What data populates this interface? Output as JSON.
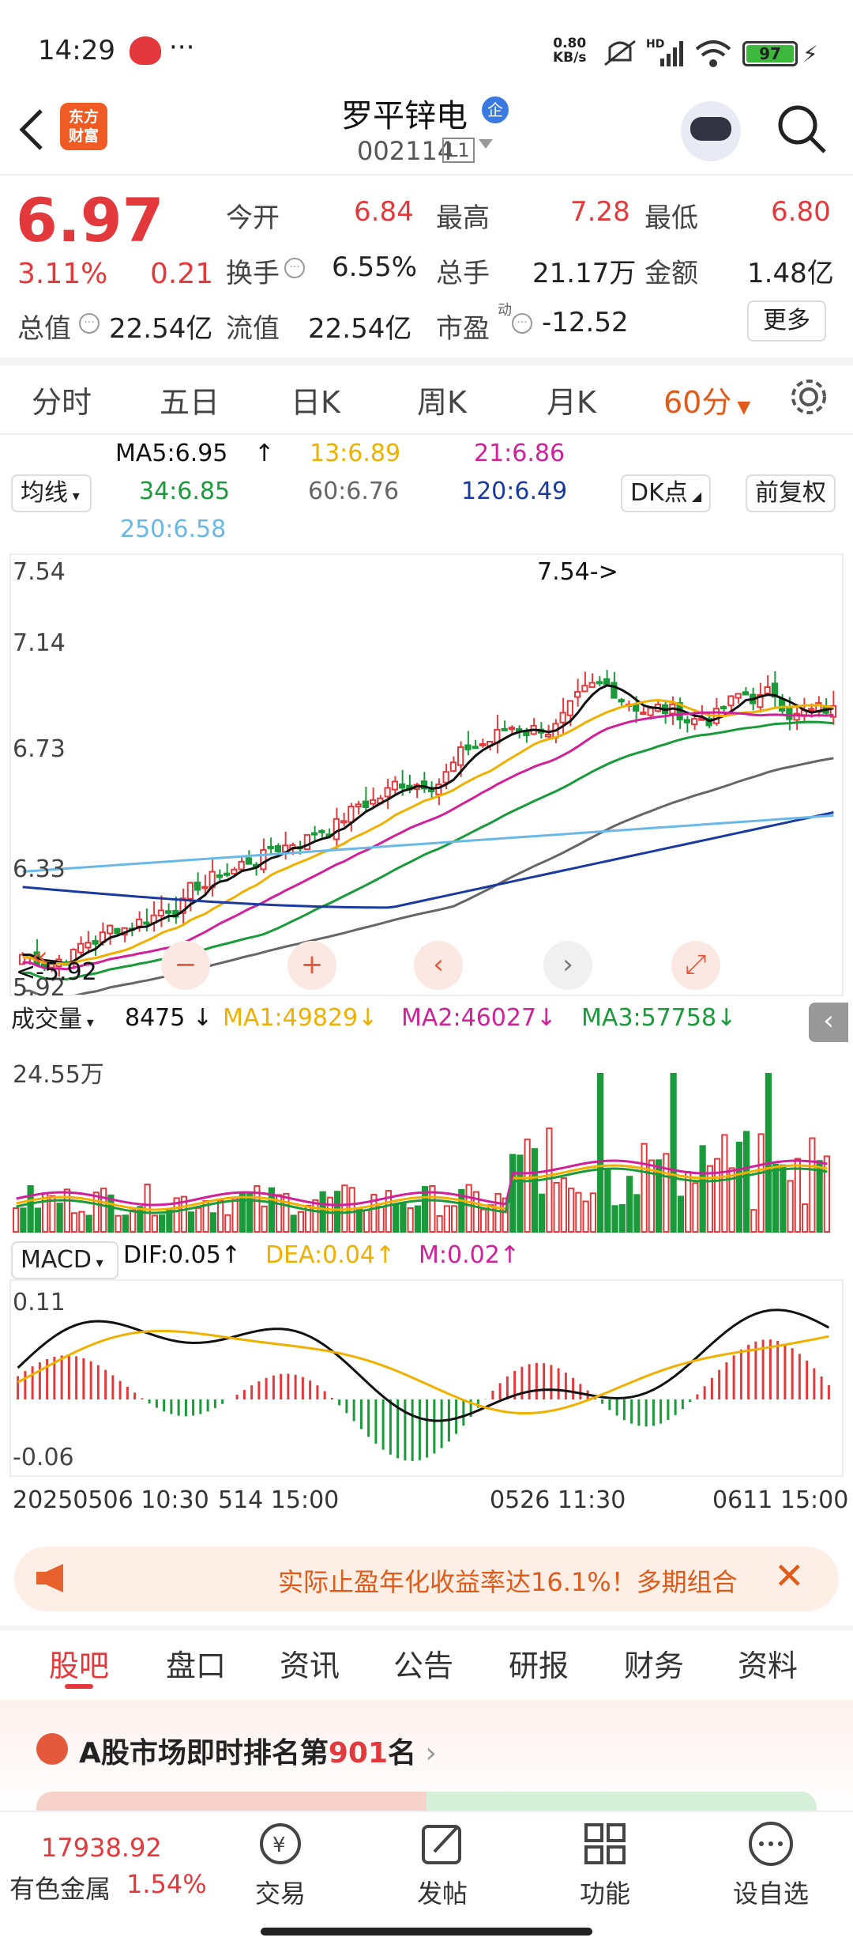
{
  "status": {
    "time": "14:29",
    "more": "···",
    "net_speed_top": "0.80",
    "net_speed_bottom": "KB/s",
    "hd": "HD",
    "battery": "97"
  },
  "header": {
    "logo_line1": "东方",
    "logo_line2": "财富",
    "name": "罗平锌电",
    "badge": "企",
    "code": "002114",
    "level": "L1"
  },
  "quote": {
    "price": "6.97",
    "pct": "3.11%",
    "chg": "0.21",
    "today_open_l": "今开",
    "today_open": "6.84",
    "high_l": "最高",
    "high": "7.28",
    "low_l": "最低",
    "low": "6.80",
    "turnover_l": "换手",
    "turnover": "6.55%",
    "volume_l": "总手",
    "volume": "21.17万",
    "amount_l": "金额",
    "amount": "1.48亿",
    "mcap_l": "总值",
    "mcap": "22.54亿",
    "float_l": "流值",
    "float": "22.54亿",
    "pe_l": "市盈",
    "pe_sup": "动",
    "pe": "-12.52",
    "more_btn": "更多"
  },
  "tabs": [
    "分时",
    "五日",
    "日K",
    "周K",
    "月K",
    "60分"
  ],
  "ma": {
    "selector": "均线",
    "ma5": "MA5:6.95",
    "m13": "13:6.89",
    "m21": "21:6.86",
    "m34": "34:6.85",
    "m60": "60:6.76",
    "m120": "120:6.49",
    "m250": "250:6.58",
    "dk": "DK点",
    "fq": "前复权"
  },
  "kline": {
    "y_top": "7.54",
    "y_2": "7.14",
    "y_3": "6.73",
    "y_4": "6.33",
    "y_bot": "5.92",
    "max_label": "7.54->",
    "min_label": "<-5.92"
  },
  "volume": {
    "selector": "成交量",
    "cur": "8475",
    "ma1": "MA1:49829",
    "ma2": "MA2:46027",
    "ma3": "MA3:57758",
    "ymax": "24.55万"
  },
  "macd": {
    "selector": "MACD",
    "dif": "DIF:0.05",
    "dea": "DEA:0.04",
    "m": "M:0.02",
    "ytop": "0.11",
    "ybot": "-0.06"
  },
  "dates": {
    "d1": "20250506 10:30",
    "d2": "514 15:00",
    "d3": "0526 11:30",
    "d4": "0611 15:00"
  },
  "banner": {
    "text": "实际止盈年化收益率达16.1%！多期组合"
  },
  "subtabs": [
    "股吧",
    "盘口",
    "资讯",
    "公告",
    "研报",
    "财务",
    "资料"
  ],
  "rank": {
    "prefix": "A股市场即时排名第",
    "num": "901",
    "suffix": "名"
  },
  "nav": {
    "index_value": "17938.92",
    "index_name": "有色金属",
    "index_pct": "1.54%",
    "trade": "交易",
    "post": "发帖",
    "func": "功能",
    "watch": "设自选"
  },
  "colors": {
    "up": "#e4393c",
    "down": "#1a9a3a",
    "ma5": "#111111",
    "ma13": "#f0b000",
    "ma21": "#d0209a",
    "ma34": "#1a9a3a",
    "ma60": "#666666",
    "ma120": "#1a3aa0",
    "ma250": "#6ab8e8"
  }
}
